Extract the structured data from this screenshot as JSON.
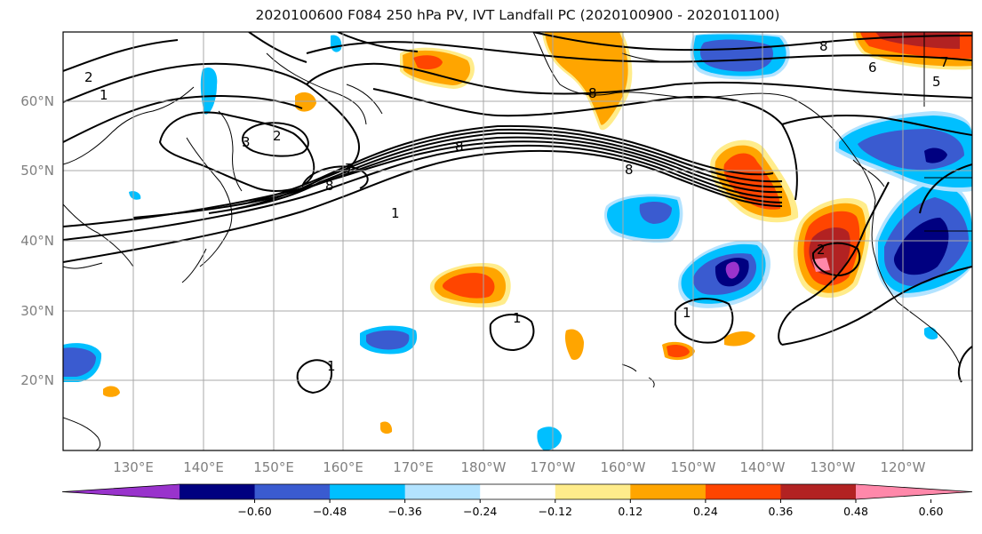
{
  "title": "2020100600 F084 250 hPa PV, IVT Landfall PC (2020100900 - 2020101100)",
  "lat_labels": [
    "60°N",
    "50°N",
    "40°N",
    "30°N",
    "20°N"
  ],
  "lon_labels": [
    "130°E",
    "140°E",
    "150°E",
    "160°E",
    "170°E",
    "180°W",
    "170°W",
    "160°W",
    "150°W",
    "140°W",
    "130°W",
    "120°W"
  ],
  "colorbar": {
    "colors": [
      "#9933cc",
      "#000080",
      "#3a5bd0",
      "#00bfff",
      "#b3e3ff",
      "#ffffff",
      "#ffec8b",
      "#ffa500",
      "#ff4500",
      "#b22222",
      "#ff88aa"
    ],
    "tick_labels": [
      "−0.60",
      "−0.48",
      "−0.36",
      "−0.24",
      "−0.12",
      "0.12",
      "0.24",
      "0.36",
      "0.48",
      "0.60"
    ]
  },
  "contour_labels": [
    "2",
    "1",
    "2",
    "3",
    "8",
    "7",
    "8",
    "8",
    "8",
    "7",
    "6",
    "5",
    "1",
    "1",
    "1",
    "1",
    "2",
    "8"
  ]
}
